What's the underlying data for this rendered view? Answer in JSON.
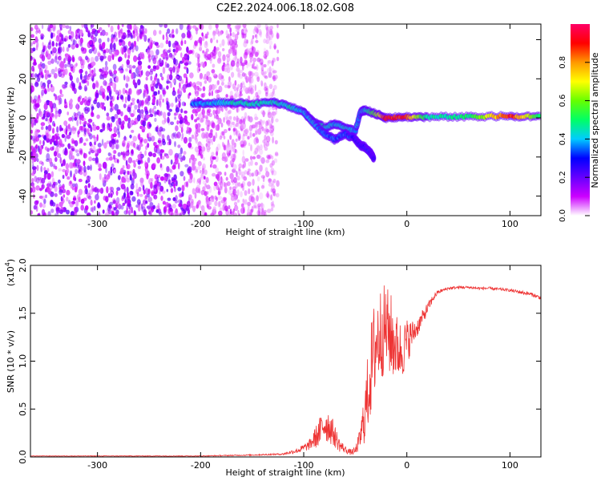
{
  "figure": {
    "title": "C2E2.2024.006.18.02.G08"
  },
  "chart_data": [
    {
      "type": "heatmap",
      "xlabel": "Height of straight line (km)",
      "ylabel": "Frequency (Hz)",
      "xlim": [
        -365,
        130
      ],
      "ylim": [
        -50,
        48
      ],
      "xticks": [
        -300,
        -200,
        -100,
        0,
        100
      ],
      "yticks": [
        -40,
        -20,
        0,
        20,
        40
      ],
      "xtick_labels": [
        "-300",
        "-200",
        "-100",
        "0",
        "100"
      ],
      "ytick_labels": [
        "-40",
        "-20",
        "0",
        "20",
        "40"
      ],
      "colorbar": {
        "label": "Normalized spectral amplitude",
        "range": [
          0,
          1
        ],
        "ticks": [
          0.0,
          0.2,
          0.4,
          0.6,
          0.8
        ],
        "tick_labels": [
          "0.0",
          "0.2",
          "0.4",
          "0.6",
          "0.8"
        ],
        "colors": [
          "#ffffff",
          "#cc00ff",
          "#6600ff",
          "#0000ff",
          "#00ccff",
          "#00ff66",
          "#66ff00",
          "#ffff00",
          "#ff9900",
          "#ff0000",
          "#ff0066"
        ]
      },
      "noise_region": {
        "x_range": [
          -365,
          -125
        ],
        "amplitude": 0.18
      },
      "ridge": {
        "x": [
          -208,
          -190,
          -170,
          -150,
          -130,
          -115,
          -100,
          -90,
          -80,
          -70,
          -60,
          -50,
          -45,
          -40,
          -30,
          -20,
          0,
          20,
          60,
          100,
          130
        ],
        "y": [
          7,
          7.5,
          8,
          7,
          8,
          6,
          3,
          -2,
          -5,
          -3,
          -5,
          -7,
          3,
          4,
          2,
          0,
          0.5,
          0.5,
          0.5,
          1,
          0.5
        ],
        "amplitude": [
          0.35,
          0.4,
          0.45,
          0.45,
          0.45,
          0.45,
          0.4,
          0.4,
          0.45,
          0.4,
          0.45,
          0.4,
          0.4,
          0.45,
          0.6,
          0.9,
          0.85,
          0.45,
          0.5,
          0.9,
          0.5
        ]
      },
      "branch": {
        "x": [
          -100,
          -90,
          -80,
          -70,
          -60,
          -50,
          -45,
          -40,
          -35,
          -32
        ],
        "y": [
          3,
          -3,
          -8,
          -11,
          -8,
          -11,
          -14,
          -15,
          -18,
          -21
        ],
        "amplitude": [
          0.4,
          0.4,
          0.35,
          0.35,
          0.35,
          0.3,
          0.3,
          0.3,
          0.3,
          0.25
        ]
      }
    },
    {
      "type": "line",
      "xlabel": "Height of straight line (km)",
      "ylabel": "SNR (10 * v/v)",
      "y_multiplier_label": "(x10",
      "y_multiplier_exp": "4",
      "y_multiplier_close": ")",
      "xlim": [
        -365,
        130
      ],
      "ylim": [
        0,
        2.0
      ],
      "xticks": [
        -300,
        -200,
        -100,
        0,
        100
      ],
      "yticks": [
        0.0,
        0.5,
        1.0,
        1.5,
        2.0
      ],
      "xtick_labels": [
        "-300",
        "-200",
        "-100",
        "0",
        "100"
      ],
      "ytick_labels": [
        "0.0",
        "0.5",
        "1.0",
        "1.5",
        "2.0"
      ],
      "line_color": "#ee3333",
      "series": [
        {
          "x": [
            -365,
            -300,
            -200,
            -150,
            -120,
            -105,
            -95,
            -85,
            -80,
            -75,
            -70,
            -65,
            -60,
            -55,
            -50,
            -45,
            -40,
            -35,
            -30,
            -25,
            -20,
            -15,
            -10,
            -5,
            0,
            5,
            10,
            15,
            20,
            25,
            30,
            40,
            50,
            60,
            70,
            80,
            90,
            100,
            110,
            120,
            130
          ],
          "y": [
            0.01,
            0.01,
            0.01,
            0.02,
            0.03,
            0.07,
            0.12,
            0.25,
            0.35,
            0.32,
            0.22,
            0.12,
            0.08,
            0.05,
            0.06,
            0.2,
            0.5,
            0.9,
            1.2,
            1.3,
            1.35,
            1.25,
            1.15,
            1.1,
            1.2,
            1.28,
            1.35,
            1.45,
            1.55,
            1.65,
            1.72,
            1.76,
            1.77,
            1.77,
            1.76,
            1.76,
            1.75,
            1.74,
            1.72,
            1.7,
            1.66
          ],
          "jitter": [
            0.002,
            0.003,
            0.004,
            0.006,
            0.01,
            0.03,
            0.05,
            0.15,
            0.2,
            0.18,
            0.12,
            0.07,
            0.04,
            0.03,
            0.04,
            0.12,
            0.35,
            0.5,
            0.55,
            0.5,
            0.45,
            0.45,
            0.35,
            0.3,
            0.25,
            0.15,
            0.1,
            0.08,
            0.06,
            0.04,
            0.02,
            0.015,
            0.015,
            0.015,
            0.015,
            0.015,
            0.015,
            0.015,
            0.02,
            0.02,
            0.02
          ]
        }
      ]
    }
  ]
}
